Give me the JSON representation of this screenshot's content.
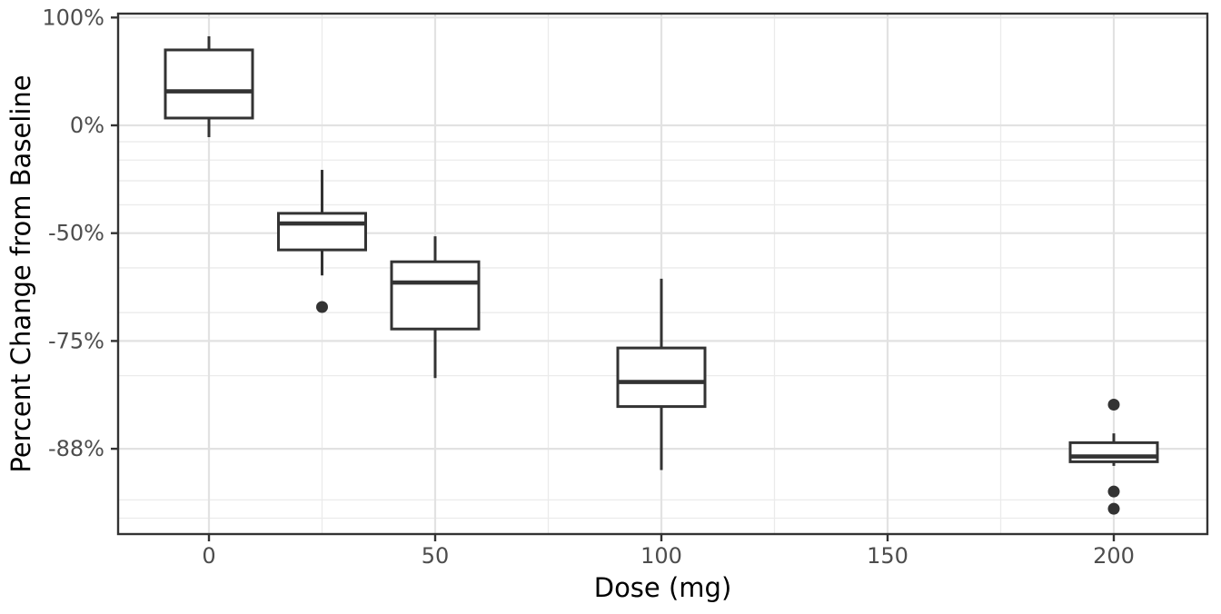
{
  "chart_data": {
    "type": "boxplot",
    "title": "",
    "xlabel": "Dose (mg)",
    "ylabel": "Percent Change from Baseline",
    "x_tick_labels": [
      "0",
      "50",
      "100",
      "150",
      "200"
    ],
    "x_major_ticks": [
      0,
      50,
      100,
      150,
      200
    ],
    "x_minor_ticks": [
      25,
      75,
      125,
      175
    ],
    "xlim": [
      -20,
      220
    ],
    "y_scale": "log2(1 + pct/100)",
    "y_major": [
      {
        "pct": 100,
        "label": "100%"
      },
      {
        "pct": 0,
        "label": "0%"
      },
      {
        "pct": -50,
        "label": "-50%"
      },
      {
        "pct": -75,
        "label": "-75%"
      },
      {
        "pct": -87.5,
        "label": "-88%"
      }
    ],
    "y_minor_pct": [
      -10,
      -20,
      -30,
      -40,
      -60,
      -70,
      -80,
      -91,
      -92
    ],
    "ylim_pct": [
      105,
      -92.8
    ],
    "grid": true,
    "legend": "none",
    "boxes": [
      {
        "dose": 0,
        "whisker_low": -7.3,
        "q1": 4.8,
        "median": 24.4,
        "q3": 62.4,
        "whisker_high": 77.3,
        "outliers": []
      },
      {
        "dose": 25,
        "whisker_low": -61.9,
        "q1": -55.1,
        "median": -46.8,
        "q3": -43.2,
        "whisker_high": -24.9,
        "outliers": [
          -68.9
        ]
      },
      {
        "dose": 50,
        "whisker_low": -80.3,
        "q1": -73.0,
        "median": -63.6,
        "q3": -58.4,
        "whisker_high": -51.0,
        "outliers": []
      },
      {
        "dose": 100,
        "whisker_low": -89.1,
        "q1": -83.6,
        "median": -80.8,
        "q3": -76.1,
        "whisker_high": -62.7,
        "outliers": []
      },
      {
        "dose": 200,
        "whisker_low": -88.8,
        "q1": -88.5,
        "median": -88.1,
        "q3": -87.0,
        "whisker_high": -86.2,
        "outliers": [
          -83.4,
          -90.5,
          -91.5
        ]
      }
    ],
    "colors": {
      "box_stroke": "#333333",
      "box_fill": "#ffffff",
      "outlier_fill": "#333333",
      "panel_border": "#333333",
      "grid_major": "#e2e2e2",
      "grid_minor": "#ebebeb",
      "tick_mark": "#333333",
      "tick_label": "#4d4d4d",
      "axis_title": "#000000",
      "background": "#ffffff"
    }
  }
}
